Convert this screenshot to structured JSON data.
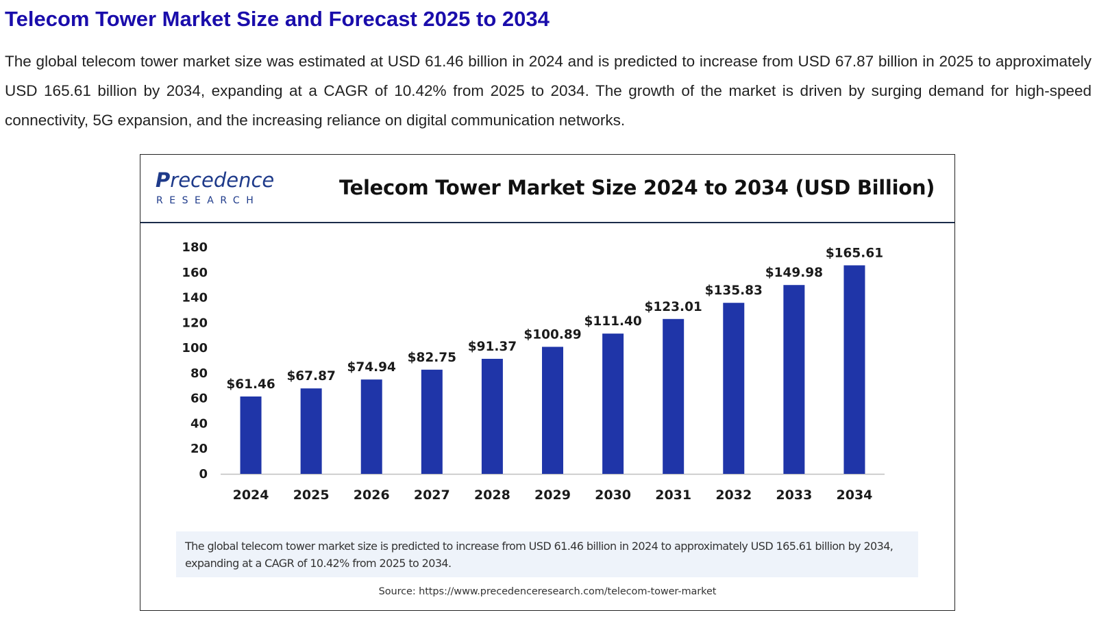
{
  "page": {
    "heading": "Telecom Tower Market Size and Forecast 2025 to 2034",
    "intro": "The global telecom tower market size was estimated at USD 61.46 billion in 2024 and is predicted to increase from USD 67.87 billion in 2025 to approximately USD 165.61 billion by 2034, expanding at a CAGR of 10.42% from 2025 to 2034. The growth of the market is driven by surging demand for high-speed connectivity, 5G expansion, and the increasing reliance on digital communication networks."
  },
  "figure": {
    "logo": {
      "word_first": "P",
      "word_rest": "recedence",
      "sub": "RESEARCH"
    },
    "summary": "The global telecom tower market size is predicted to increase from USD 61.46 billion in 2024 to approximately USD 165.61 billion by 2034, expanding at a CAGR of 10.42% from 2025 to 2034.",
    "source": "Source: https://www.precedenceresearch.com/telecom-tower-market"
  },
  "colors": {
    "heading": "#1a0dab",
    "bar": "#1f35a8",
    "logo": "#1e3a8a",
    "summary_bg": "#eef3fa"
  },
  "chart_data": {
    "type": "bar",
    "title": "Telecom Tower Market Size 2024 to 2034 (USD Billion)",
    "xlabel": "",
    "ylabel": "",
    "categories": [
      "2024",
      "2025",
      "2026",
      "2027",
      "2028",
      "2029",
      "2030",
      "2031",
      "2032",
      "2033",
      "2034"
    ],
    "values": [
      61.46,
      67.87,
      74.94,
      82.75,
      91.37,
      100.89,
      111.4,
      123.01,
      135.83,
      149.98,
      165.61
    ],
    "value_labels": [
      "$61.46",
      "$67.87",
      "$74.94",
      "$82.75",
      "$91.37",
      "$100.89",
      "$111.40",
      "$123.01",
      "$135.83",
      "$149.98",
      "$165.61"
    ],
    "yticks": [
      0,
      20,
      40,
      60,
      80,
      100,
      120,
      140,
      160,
      180
    ],
    "ylim": [
      0,
      180
    ],
    "grid": false,
    "legend": "none"
  }
}
